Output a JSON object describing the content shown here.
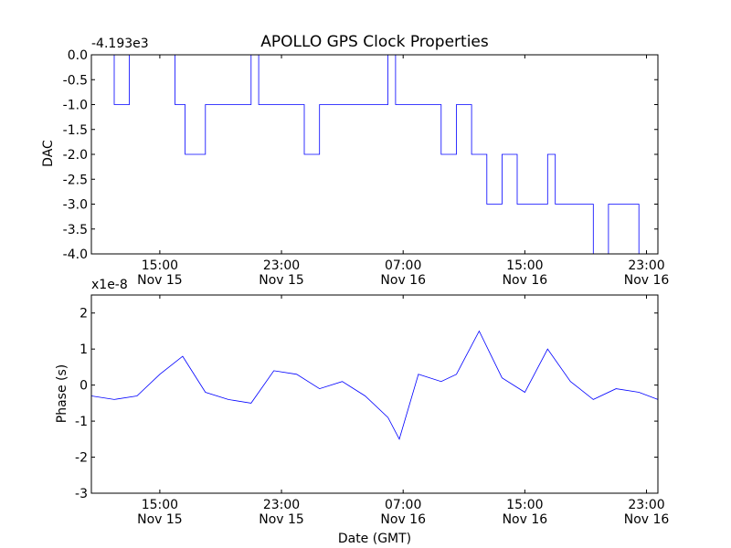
{
  "figure": {
    "title": "APOLLO GPS Clock Properties",
    "xlabel": "Date (GMT)"
  },
  "chart_data": [
    {
      "type": "line",
      "title": "APOLLO GPS Clock Properties",
      "ylabel": "DAC",
      "offset_label": "-4.193e3",
      "color": "#0000ff",
      "xlim": [
        "Nov 15 10:30",
        "Nov 16 23:45"
      ],
      "ylim": [
        -4.0,
        0.0
      ],
      "yticks": [
        0.0,
        -0.5,
        -1.0,
        -1.5,
        -2.0,
        -2.5,
        -3.0,
        -3.5,
        -4.0
      ],
      "ytick_labels": [
        "0.0",
        "-0.5",
        "-1.0",
        "-1.5",
        "-2.0",
        "-2.5",
        "-3.0",
        "-3.5",
        "-4.0"
      ],
      "xticks": [
        {
          "time": "15:00",
          "date": "Nov 15"
        },
        {
          "time": "23:00",
          "date": "Nov 15"
        },
        {
          "time": "07:00",
          "date": "Nov 16"
        },
        {
          "time": "15:00",
          "date": "Nov 16"
        },
        {
          "time": "23:00",
          "date": "Nov 16"
        }
      ],
      "x": [
        "Nov 15 10:30",
        "Nov 15 12:00",
        "Nov 15 13:00",
        "Nov 15 16:00",
        "Nov 15 16:40",
        "Nov 15 18:00",
        "Nov 15 19:00",
        "Nov 15 21:00",
        "Nov 15 21:30",
        "Nov 15 23:30",
        "Nov 16 00:30",
        "Nov 16 01:30",
        "Nov 16 03:00",
        "Nov 16 04:30",
        "Nov 16 06:00",
        "Nov 16 06:30",
        "Nov 16 08:00",
        "Nov 16 09:30",
        "Nov 16 10:30",
        "Nov 16 11:30",
        "Nov 16 12:30",
        "Nov 16 13:30",
        "Nov 16 14:30",
        "Nov 16 15:30",
        "Nov 16 16:30",
        "Nov 16 17:00",
        "Nov 16 18:00",
        "Nov 16 19:30",
        "Nov 16 20:30",
        "Nov 16 21:30",
        "Nov 16 22:30",
        "Nov 16 23:45"
      ],
      "values": [
        0.0,
        -1.0,
        0.0,
        -1.0,
        -2.0,
        -1.0,
        -1.0,
        0.0,
        -1.0,
        -1.0,
        -2.0,
        -1.0,
        -1.0,
        -1.0,
        0.0,
        -1.0,
        -1.0,
        -2.0,
        -1.0,
        -2.0,
        -3.0,
        -2.0,
        -3.0,
        -3.0,
        -2.0,
        -3.0,
        -3.0,
        -4.0,
        -3.0,
        -3.0,
        -4.0,
        -3.0
      ]
    },
    {
      "type": "line",
      "ylabel": "Phase (s)",
      "offset_label": "x1e-8",
      "color": "#0000ff",
      "xlim": [
        "Nov 15 10:30",
        "Nov 16 23:45"
      ],
      "ylim": [
        -3,
        2.5
      ],
      "yticks": [
        2,
        1,
        0,
        -1,
        -2,
        -3
      ],
      "ytick_labels": [
        "2",
        "1",
        "0",
        "-1",
        "-2",
        "-3"
      ],
      "xticks": [
        {
          "time": "15:00",
          "date": "Nov 15"
        },
        {
          "time": "23:00",
          "date": "Nov 15"
        },
        {
          "time": "07:00",
          "date": "Nov 16"
        },
        {
          "time": "15:00",
          "date": "Nov 16"
        },
        {
          "time": "23:00",
          "date": "Nov 16"
        }
      ],
      "x": [
        "Nov 15 10:30",
        "Nov 15 12:00",
        "Nov 15 13:30",
        "Nov 15 15:00",
        "Nov 15 16:30",
        "Nov 15 18:00",
        "Nov 15 19:30",
        "Nov 15 21:00",
        "Nov 15 22:30",
        "Nov 16 00:00",
        "Nov 16 01:30",
        "Nov 16 03:00",
        "Nov 16 04:30",
        "Nov 16 06:00",
        "Nov 16 06:45",
        "Nov 16 08:00",
        "Nov 16 09:30",
        "Nov 16 10:30",
        "Nov 16 12:00",
        "Nov 16 13:30",
        "Nov 16 15:00",
        "Nov 16 16:30",
        "Nov 16 18:00",
        "Nov 16 19:30",
        "Nov 16 21:00",
        "Nov 16 22:30",
        "Nov 16 23:45"
      ],
      "values": [
        -0.3,
        -0.4,
        -0.3,
        0.3,
        0.8,
        -0.2,
        -0.4,
        -0.5,
        0.4,
        0.3,
        -0.1,
        0.1,
        -0.3,
        -0.9,
        -1.5,
        0.3,
        0.1,
        0.3,
        1.5,
        0.2,
        -0.2,
        1.0,
        0.1,
        -0.4,
        -0.1,
        -0.2,
        -0.4
      ]
    }
  ]
}
